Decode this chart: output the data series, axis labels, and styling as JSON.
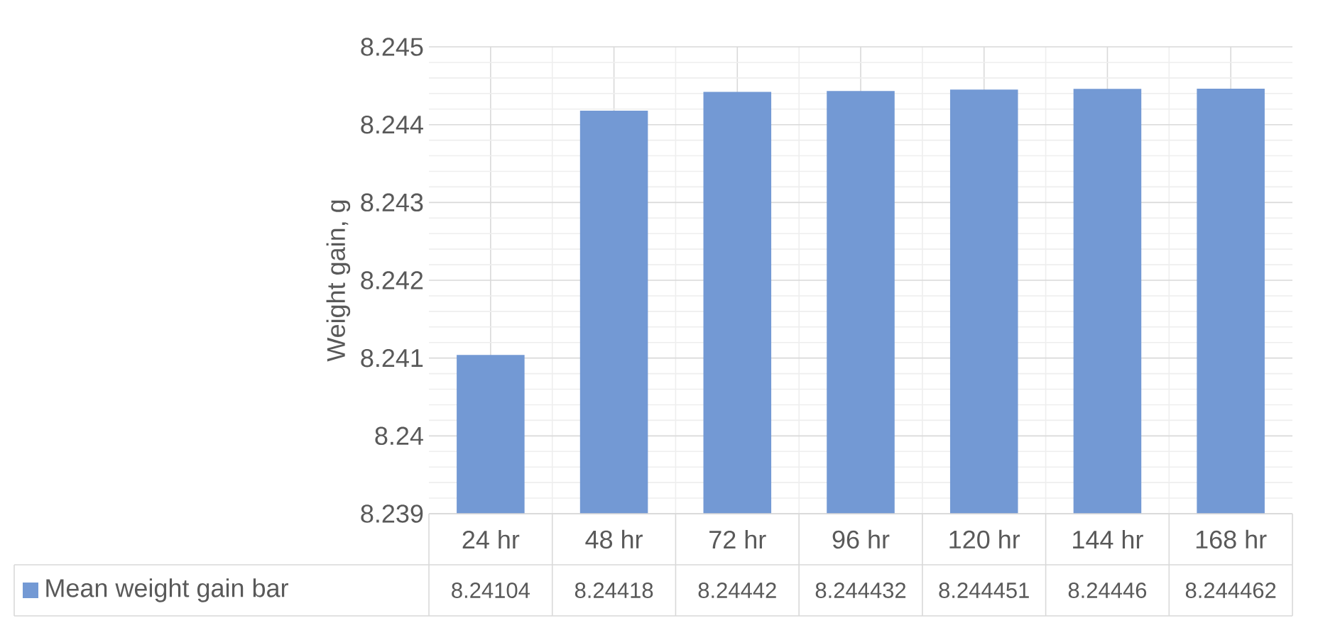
{
  "chart_data": {
    "type": "bar",
    "ylabel": "Weight gain, g",
    "categories": [
      "24 hr",
      "48 hr",
      "72 hr",
      "96 hr",
      "120 hr",
      "144 hr",
      "168 hr"
    ],
    "series": [
      {
        "name": "Mean weight gain bar",
        "color": "#7399d4",
        "values": [
          8.24104,
          8.24418,
          8.24442,
          8.244432,
          8.244451,
          8.24446,
          8.244462
        ]
      }
    ],
    "ylim": [
      8.239,
      8.245
    ],
    "yticks": [
      8.239,
      8.24,
      8.241,
      8.242,
      8.243,
      8.244,
      8.245
    ],
    "grid": true,
    "data_labels": true,
    "legend": "bottom left"
  }
}
